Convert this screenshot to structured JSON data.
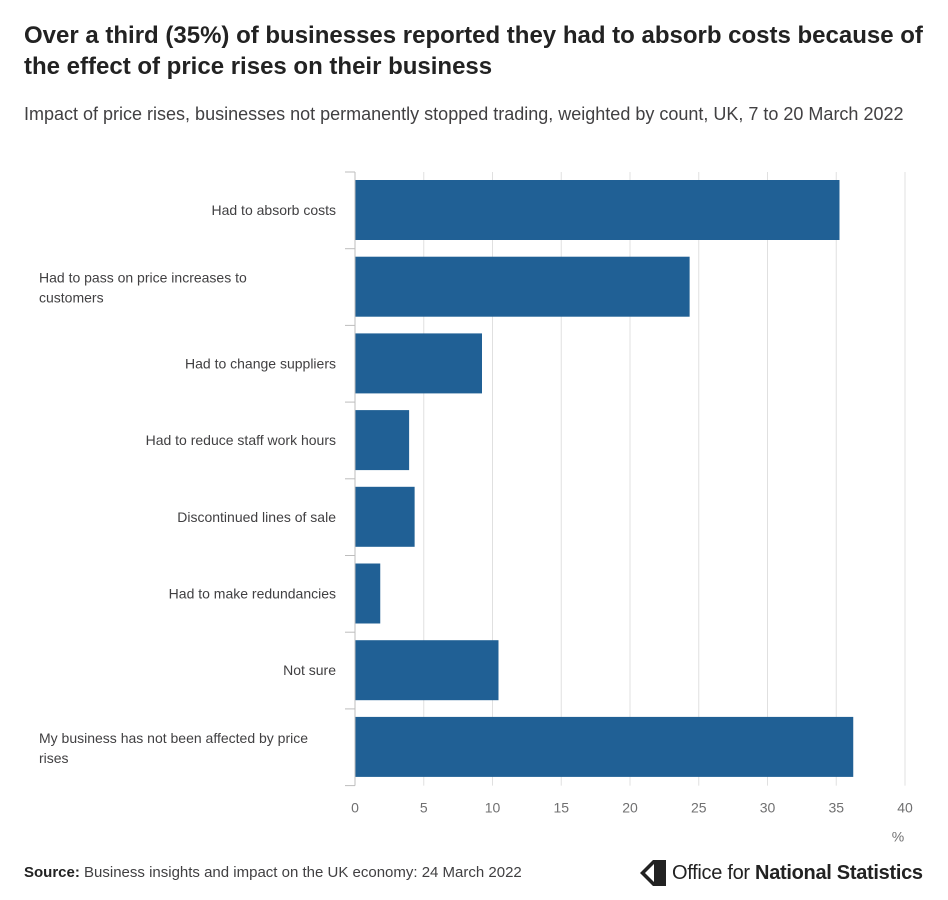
{
  "title": "Over a third (35%) of businesses reported they had to absorb costs because of the effect of price rises on their business",
  "subtitle": "Impact of price rises, businesses not permanently stopped trading, weighted by count, UK, 7 to 20 March 2022",
  "source": {
    "label": "Source:",
    "text": "Business insights and impact on the UK economy: 24 March 2022"
  },
  "logo": {
    "text_light": "Office for",
    "text_bold": "National Statistics"
  },
  "colors": {
    "bar": "#206095",
    "grid": "#e0e0e0",
    "axis": "#bdbdbd"
  },
  "chart_data": {
    "type": "bar",
    "orientation": "horizontal",
    "categories": [
      [
        "Had to absorb costs"
      ],
      [
        "Had to pass on price increases to",
        "customers"
      ],
      [
        "Had to change suppliers"
      ],
      [
        "Had to reduce staff work hours"
      ],
      [
        "Discontinued lines of sale"
      ],
      [
        "Had to make redundancies"
      ],
      [
        "Not sure"
      ],
      [
        "My business has not been affected by price",
        "rises"
      ]
    ],
    "values": [
      35.2,
      24.3,
      9.2,
      3.9,
      4.3,
      1.8,
      10.4,
      36.2
    ],
    "xlim": [
      0,
      40
    ],
    "xticks": [
      0,
      5,
      10,
      15,
      20,
      25,
      30,
      35,
      40
    ],
    "xlabel": "%",
    "grid": true
  }
}
